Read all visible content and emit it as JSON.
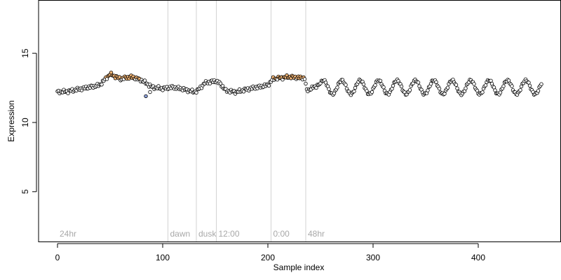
{
  "chart_data": {
    "type": "scatter",
    "title": "",
    "xlabel": "Sample index",
    "ylabel": "Expression",
    "xlim": [
      -18,
      478
    ],
    "ylim": [
      1.4,
      18.8
    ],
    "x_ticks": [
      0,
      100,
      200,
      300,
      400
    ],
    "y_ticks": [
      5,
      10,
      15
    ],
    "grid": false,
    "legend": "none",
    "phase_markers": [
      {
        "label": "24hr",
        "x": 0,
        "line": false
      },
      {
        "label": "dawn",
        "x": 105,
        "line": true
      },
      {
        "label": "dusk",
        "x": 132,
        "line": true
      },
      {
        "label": "12:00",
        "x": 151,
        "line": true
      },
      {
        "label": "0:00",
        "x": 203,
        "line": true
      },
      {
        "label": "48hr",
        "x": 236,
        "line": true
      }
    ],
    "anchors": [
      [
        0,
        12.2
      ],
      [
        10,
        12.25
      ],
      [
        20,
        12.4
      ],
      [
        30,
        12.55
      ],
      [
        40,
        12.7
      ],
      [
        50,
        13.5
      ],
      [
        60,
        13.15
      ],
      [
        70,
        13.3
      ],
      [
        80,
        13.05
      ],
      [
        90,
        12.55
      ],
      [
        100,
        12.45
      ],
      [
        110,
        12.55
      ],
      [
        120,
        12.4
      ],
      [
        130,
        12.2
      ],
      [
        133,
        12.3
      ],
      [
        140,
        12.85
      ],
      [
        150,
        13.0
      ],
      [
        155,
        12.8
      ],
      [
        160,
        12.3
      ],
      [
        170,
        12.2
      ],
      [
        180,
        12.4
      ],
      [
        190,
        12.55
      ],
      [
        200,
        12.7
      ],
      [
        205,
        13.15
      ],
      [
        220,
        13.3
      ],
      [
        235,
        13.2
      ],
      [
        237,
        12.3
      ],
      [
        245,
        12.6
      ],
      [
        250,
        12.8
      ]
    ],
    "oscillation": {
      "x_start": 250,
      "x_end": 460,
      "mean": 12.55,
      "amplitude": 0.5,
      "period": 17.5,
      "phase": 0.6
    },
    "outliers": [
      [
        84,
        11.9
      ],
      [
        88,
        12.2
      ]
    ],
    "n_points": 461,
    "colors": {
      "point_edge": "#000000",
      "low": "#8fa3dc",
      "mid": "#ffffff",
      "high": "#f6b878",
      "phase_line": "#d3d3d3",
      "phase_text": "#a8a8a8",
      "axis": "#000000"
    }
  }
}
